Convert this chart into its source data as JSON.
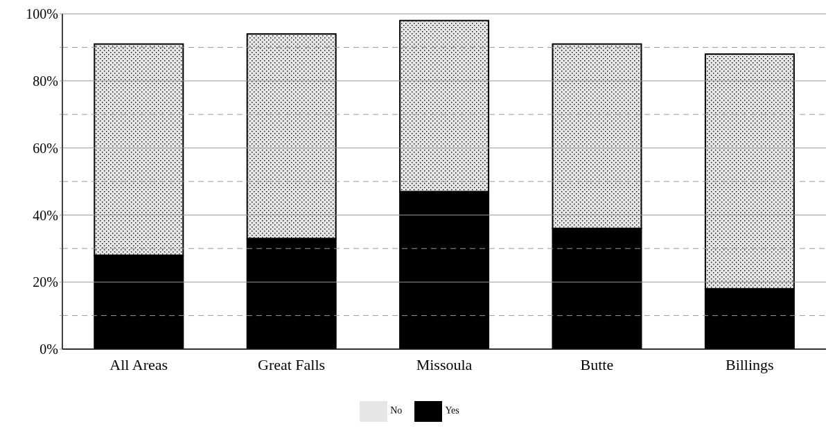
{
  "chart_data": {
    "type": "bar",
    "stacked": true,
    "categories": [
      "All Areas",
      "Great Falls",
      "Missoula",
      "Butte",
      "Billings"
    ],
    "series": [
      {
        "name": "Yes",
        "color": "#000000",
        "values": [
          28,
          33,
          47,
          36,
          18
        ]
      },
      {
        "name": "No",
        "color": "#e6e6e6",
        "values": [
          63,
          61,
          51,
          55,
          70
        ]
      }
    ],
    "ylim": [
      0,
      100
    ],
    "yticks": [
      {
        "value": 0,
        "label": "0%"
      },
      {
        "value": 10,
        "label": null
      },
      {
        "value": 20,
        "label": "20%"
      },
      {
        "value": 30,
        "label": null
      },
      {
        "value": 40,
        "label": "40%"
      },
      {
        "value": 50,
        "label": null
      },
      {
        "value": 60,
        "label": "60%"
      },
      {
        "value": 70,
        "label": null
      },
      {
        "value": 80,
        "label": "80%"
      },
      {
        "value": 90,
        "label": null
      },
      {
        "value": 100,
        "label": "100%"
      }
    ],
    "grid": true,
    "legend": "bottom"
  }
}
